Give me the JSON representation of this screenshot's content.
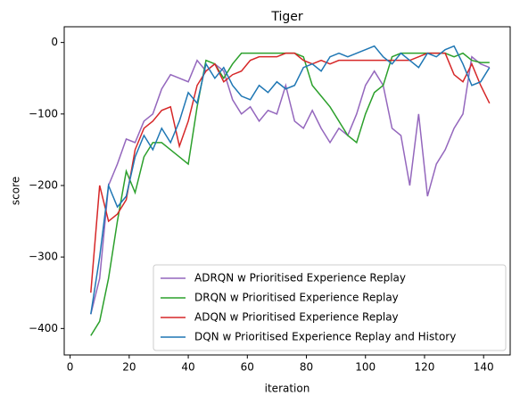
{
  "chart_data": {
    "type": "line",
    "title": "Tiger",
    "x_label": "iteration",
    "y_label": "score",
    "x": [
      7,
      10,
      13,
      16,
      19,
      22,
      25,
      28,
      31,
      34,
      37,
      40,
      43,
      46,
      49,
      52,
      55,
      58,
      61,
      64,
      67,
      70,
      73,
      76,
      79,
      82,
      85,
      88,
      91,
      94,
      97,
      100,
      103,
      106,
      109,
      112,
      115,
      118,
      121,
      124,
      127,
      130,
      133,
      136,
      139,
      142
    ],
    "series": [
      {
        "name": "ADRQN w Prioritised Experience Replay",
        "color": "#9467bd",
        "values": [
          -380,
          -330,
          -200,
          -170,
          -135,
          -140,
          -110,
          -100,
          -65,
          -45,
          -50,
          -55,
          -25,
          -40,
          -30,
          -40,
          -80,
          -100,
          -90,
          -110,
          -95,
          -100,
          -60,
          -110,
          -120,
          -95,
          -120,
          -140,
          -120,
          -130,
          -100,
          -60,
          -40,
          -60,
          -120,
          -130,
          -200,
          -100,
          -215,
          -170,
          -150,
          -120,
          -100,
          -20,
          -30,
          -35
        ]
      },
      {
        "name": "DRQN w Prioritised Experience Replay",
        "color": "#2ca02c",
        "values": [
          -410,
          -390,
          -330,
          -250,
          -180,
          -210,
          -160,
          -140,
          -140,
          -150,
          -160,
          -170,
          -90,
          -25,
          -30,
          -50,
          -30,
          -15,
          -15,
          -15,
          -15,
          -15,
          -15,
          -15,
          -20,
          -60,
          -75,
          -90,
          -110,
          -130,
          -140,
          -100,
          -70,
          -60,
          -20,
          -15,
          -15,
          -15,
          -15,
          -15,
          -15,
          -20,
          -15,
          -25,
          -28,
          -28
        ]
      },
      {
        "name": "ADQN w Prioritised Experience Replay",
        "color": "#d62728",
        "values": [
          -350,
          -200,
          -250,
          -240,
          -220,
          -150,
          -120,
          -110,
          -95,
          -90,
          -145,
          -110,
          -60,
          -40,
          -30,
          -55,
          -45,
          -40,
          -25,
          -20,
          -20,
          -20,
          -15,
          -15,
          -25,
          -30,
          -25,
          -30,
          -25,
          -25,
          -25,
          -25,
          -25,
          -25,
          -25,
          -25,
          -25,
          -20,
          -15,
          -15,
          -15,
          -45,
          -55,
          -30,
          -60,
          -85
        ]
      },
      {
        "name": "DQN w Prioritised Experience Replay and History",
        "color": "#1f77b4",
        "values": [
          -380,
          -300,
          -200,
          -230,
          -215,
          -160,
          -130,
          -150,
          -120,
          -140,
          -110,
          -70,
          -85,
          -30,
          -50,
          -35,
          -60,
          -75,
          -80,
          -60,
          -70,
          -55,
          -65,
          -60,
          -35,
          -30,
          -40,
          -20,
          -15,
          -20,
          -15,
          -10,
          -5,
          -20,
          -30,
          -15,
          -25,
          -35,
          -15,
          -20,
          -10,
          -5,
          -30,
          -60,
          -55,
          -35
        ]
      }
    ],
    "xlim": [
      -2,
      149
    ],
    "ylim": [
      -437,
      22
    ],
    "xticks": [
      0,
      20,
      40,
      60,
      80,
      100,
      120,
      140
    ],
    "yticks": [
      {
        "value": -400,
        "label": "−400"
      },
      {
        "value": -300,
        "label": "−300"
      },
      {
        "value": -200,
        "label": "−200"
      },
      {
        "value": -100,
        "label": "−100"
      },
      0
    ],
    "legend": "lower right"
  }
}
